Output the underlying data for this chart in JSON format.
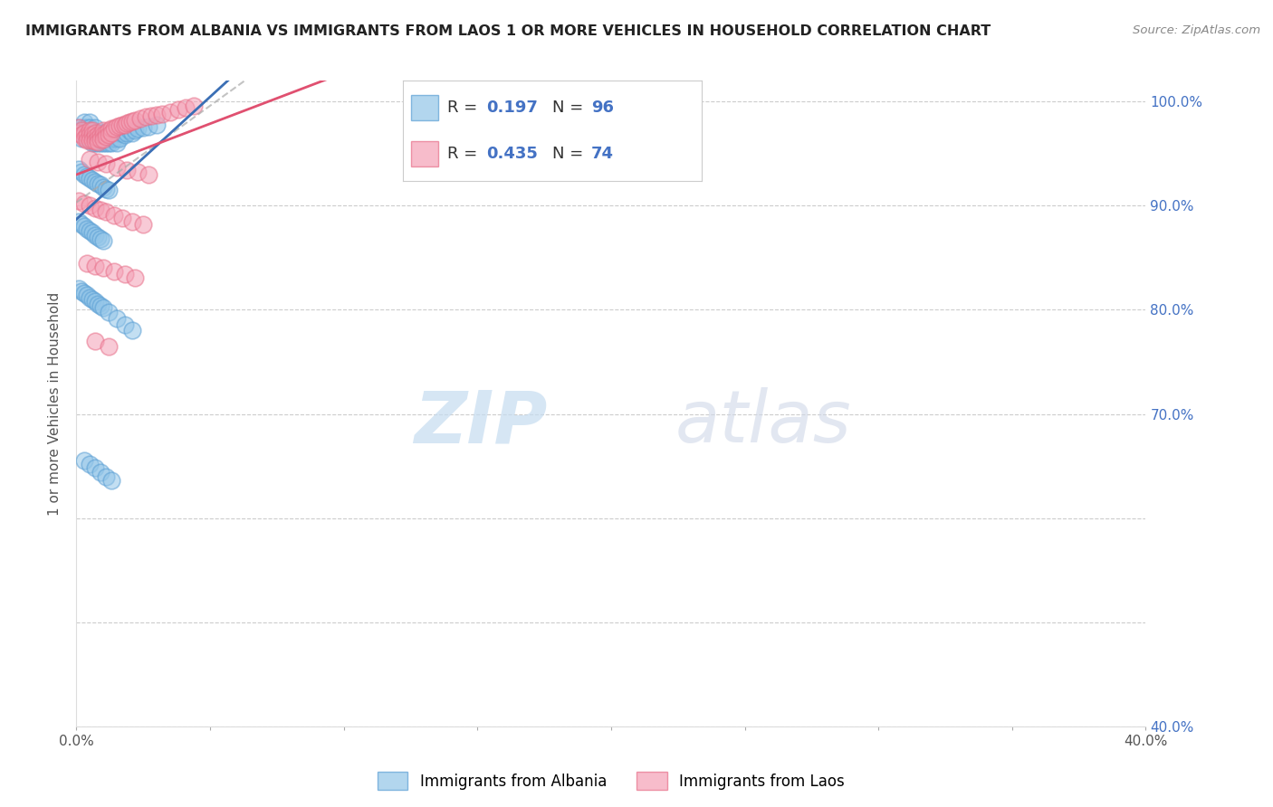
{
  "title": "IMMIGRANTS FROM ALBANIA VS IMMIGRANTS FROM LAOS 1 OR MORE VEHICLES IN HOUSEHOLD CORRELATION CHART",
  "source": "Source: ZipAtlas.com",
  "ylabel": "1 or more Vehicles in Household",
  "xlim": [
    0.0,
    0.4
  ],
  "ylim": [
    0.4,
    1.02
  ],
  "albania_color": "#92C5E8",
  "laos_color": "#F4A0B5",
  "albania_edge_color": "#5B9FD4",
  "laos_edge_color": "#E8708A",
  "albania_line_color": "#3B6FB5",
  "laos_line_color": "#E05070",
  "albania_dashed_color": "#AAAACC",
  "albania_R": 0.197,
  "albania_N": 96,
  "laos_R": 0.435,
  "laos_N": 74,
  "legend_label_albania": "Immigrants from Albania",
  "legend_label_laos": "Immigrants from Laos",
  "watermark_zip": "ZIP",
  "watermark_atlas": "atlas",
  "grid_color": "#CCCCCC",
  "right_tick_color": "#4472C4",
  "ytick_vals": [
    0.4,
    0.5,
    0.6,
    0.7,
    0.8,
    0.9,
    1.0
  ],
  "ytick_right_labels": [
    "40.0%",
    "",
    "",
    "70.0%",
    "80.0%",
    "90.0%",
    "100.0%"
  ],
  "ytick_left_labels": [
    "",
    "",
    "",
    "",
    "",
    "",
    ""
  ],
  "xtick_vals": [
    0.0,
    0.05,
    0.1,
    0.15,
    0.2,
    0.25,
    0.3,
    0.35,
    0.4
  ],
  "albania_x": [
    0.001,
    0.002,
    0.002,
    0.003,
    0.003,
    0.003,
    0.004,
    0.004,
    0.004,
    0.005,
    0.005,
    0.005,
    0.006,
    0.006,
    0.006,
    0.007,
    0.007,
    0.007,
    0.007,
    0.008,
    0.008,
    0.008,
    0.009,
    0.009,
    0.009,
    0.01,
    0.01,
    0.01,
    0.011,
    0.011,
    0.011,
    0.012,
    0.012,
    0.012,
    0.013,
    0.013,
    0.013,
    0.014,
    0.014,
    0.015,
    0.015,
    0.015,
    0.016,
    0.016,
    0.017,
    0.018,
    0.019,
    0.02,
    0.021,
    0.022,
    0.023,
    0.025,
    0.027,
    0.03,
    0.001,
    0.002,
    0.003,
    0.004,
    0.005,
    0.006,
    0.007,
    0.008,
    0.009,
    0.01,
    0.011,
    0.012,
    0.001,
    0.002,
    0.003,
    0.004,
    0.005,
    0.006,
    0.007,
    0.008,
    0.009,
    0.01,
    0.001,
    0.002,
    0.003,
    0.004,
    0.005,
    0.006,
    0.007,
    0.008,
    0.009,
    0.01,
    0.012,
    0.015,
    0.018,
    0.021,
    0.003,
    0.005,
    0.007,
    0.009,
    0.011,
    0.013
  ],
  "albania_y": [
    0.975,
    0.97,
    0.965,
    0.98,
    0.975,
    0.97,
    0.975,
    0.97,
    0.965,
    0.98,
    0.975,
    0.965,
    0.97,
    0.965,
    0.96,
    0.975,
    0.97,
    0.965,
    0.96,
    0.97,
    0.965,
    0.96,
    0.97,
    0.965,
    0.96,
    0.97,
    0.965,
    0.96,
    0.97,
    0.965,
    0.96,
    0.97,
    0.965,
    0.96,
    0.97,
    0.965,
    0.96,
    0.97,
    0.965,
    0.97,
    0.965,
    0.96,
    0.97,
    0.965,
    0.97,
    0.968,
    0.97,
    0.972,
    0.97,
    0.972,
    0.974,
    0.975,
    0.976,
    0.978,
    0.935,
    0.932,
    0.93,
    0.928,
    0.926,
    0.925,
    0.923,
    0.921,
    0.92,
    0.918,
    0.916,
    0.915,
    0.885,
    0.882,
    0.88,
    0.878,
    0.876,
    0.874,
    0.872,
    0.87,
    0.868,
    0.866,
    0.82,
    0.818,
    0.816,
    0.814,
    0.812,
    0.81,
    0.808,
    0.806,
    0.804,
    0.802,
    0.798,
    0.792,
    0.786,
    0.78,
    0.655,
    0.652,
    0.648,
    0.644,
    0.64,
    0.636
  ],
  "laos_x": [
    0.001,
    0.001,
    0.002,
    0.002,
    0.003,
    0.003,
    0.004,
    0.004,
    0.005,
    0.005,
    0.005,
    0.006,
    0.006,
    0.006,
    0.007,
    0.007,
    0.007,
    0.008,
    0.008,
    0.008,
    0.009,
    0.009,
    0.01,
    0.01,
    0.01,
    0.011,
    0.011,
    0.012,
    0.012,
    0.013,
    0.013,
    0.014,
    0.015,
    0.016,
    0.017,
    0.018,
    0.019,
    0.02,
    0.021,
    0.022,
    0.024,
    0.026,
    0.028,
    0.03,
    0.032,
    0.035,
    0.038,
    0.041,
    0.044,
    0.005,
    0.008,
    0.011,
    0.015,
    0.019,
    0.023,
    0.027,
    0.001,
    0.003,
    0.005,
    0.007,
    0.009,
    0.011,
    0.014,
    0.017,
    0.021,
    0.025,
    0.004,
    0.007,
    0.01,
    0.014,
    0.018,
    0.022,
    0.007,
    0.012
  ],
  "laos_y": [
    0.975,
    0.97,
    0.972,
    0.968,
    0.97,
    0.965,
    0.968,
    0.963,
    0.972,
    0.968,
    0.963,
    0.972,
    0.968,
    0.963,
    0.97,
    0.966,
    0.962,
    0.968,
    0.965,
    0.961,
    0.968,
    0.964,
    0.972,
    0.968,
    0.964,
    0.97,
    0.966,
    0.972,
    0.968,
    0.974,
    0.97,
    0.974,
    0.976,
    0.977,
    0.978,
    0.978,
    0.979,
    0.98,
    0.981,
    0.982,
    0.984,
    0.985,
    0.986,
    0.987,
    0.988,
    0.99,
    0.992,
    0.994,
    0.996,
    0.945,
    0.942,
    0.94,
    0.937,
    0.934,
    0.932,
    0.93,
    0.905,
    0.902,
    0.9,
    0.898,
    0.896,
    0.894,
    0.891,
    0.888,
    0.885,
    0.882,
    0.845,
    0.842,
    0.84,
    0.837,
    0.834,
    0.831,
    0.77,
    0.765
  ]
}
